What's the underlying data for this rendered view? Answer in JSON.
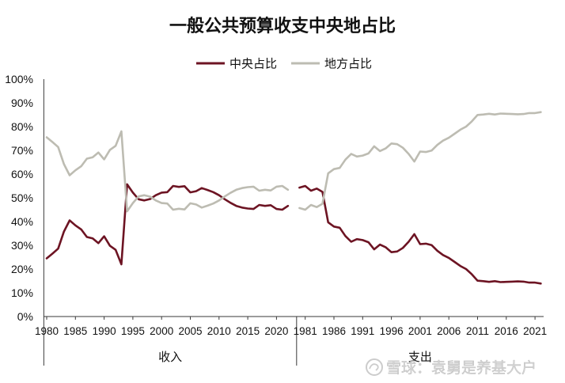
{
  "chart_data": {
    "type": "line",
    "title": "一般公共预算收支中央地占比",
    "legend_position": "top",
    "grid": false,
    "ylim": [
      0,
      100
    ],
    "y_ticks": [
      0,
      10,
      20,
      30,
      40,
      50,
      60,
      70,
      80,
      90,
      100
    ],
    "y_tick_labels": [
      "0%",
      "10%",
      "20%",
      "30%",
      "40%",
      "50%",
      "60%",
      "70%",
      "80%",
      "90%",
      "100%"
    ],
    "groups": [
      {
        "label": "收入",
        "x": [
          1980,
          1981,
          1982,
          1983,
          1984,
          1985,
          1986,
          1987,
          1988,
          1989,
          1990,
          1991,
          1992,
          1993,
          1994,
          1995,
          1996,
          1997,
          1998,
          1999,
          2000,
          2001,
          2002,
          2003,
          2004,
          2005,
          2006,
          2007,
          2008,
          2009,
          2010,
          2011,
          2012,
          2013,
          2014,
          2015,
          2016,
          2017,
          2018,
          2019,
          2020,
          2021,
          2022
        ],
        "x_tick_labels": [
          "1980",
          "1985",
          "1990",
          "1995",
          "2000",
          "2005",
          "2010",
          "2015",
          "2020"
        ]
      },
      {
        "label": "支出",
        "x": [
          1980,
          1981,
          1982,
          1983,
          1984,
          1985,
          1986,
          1987,
          1988,
          1989,
          1990,
          1991,
          1992,
          1993,
          1994,
          1995,
          1996,
          1997,
          1998,
          1999,
          2000,
          2001,
          2002,
          2003,
          2004,
          2005,
          2006,
          2007,
          2008,
          2009,
          2010,
          2011,
          2012,
          2013,
          2014,
          2015,
          2016,
          2017,
          2018,
          2019,
          2020,
          2021,
          2022
        ],
        "x_tick_labels": [
          "1981",
          "1986",
          "1991",
          "1996",
          "2001",
          "2006",
          "2011",
          "2016",
          "2021"
        ]
      }
    ],
    "series": [
      {
        "name": "中央占比",
        "color": "#6d1423",
        "values": [
          [
            24.5,
            26.5,
            28.6,
            35.8,
            40.5,
            38.4,
            36.7,
            33.5,
            32.9,
            30.9,
            33.8,
            29.8,
            28.1,
            22.0,
            55.7,
            52.2,
            49.4,
            48.9,
            49.5,
            51.1,
            52.2,
            52.4,
            55.0,
            54.6,
            54.9,
            52.3,
            52.8,
            54.1,
            53.3,
            52.4,
            51.1,
            49.4,
            47.9,
            46.6,
            45.9,
            45.5,
            45.3,
            47.0,
            46.6,
            46.9,
            45.3,
            45.0,
            46.6
          ],
          [
            54.3,
            55.0,
            53.0,
            53.9,
            52.5,
            39.7,
            37.9,
            37.4,
            33.9,
            31.5,
            32.6,
            32.2,
            31.3,
            28.3,
            30.3,
            29.2,
            27.1,
            27.4,
            28.9,
            31.5,
            34.7,
            30.5,
            30.7,
            30.1,
            27.7,
            25.9,
            24.7,
            23.0,
            21.3,
            20.0,
            17.8,
            15.1,
            14.9,
            14.6,
            14.9,
            14.5,
            14.6,
            14.7,
            14.8,
            14.7,
            14.3,
            14.3,
            13.9
          ]
        ]
      },
      {
        "name": "地方占比",
        "color": "#bdbcb2",
        "values": [
          [
            75.5,
            73.5,
            71.4,
            64.2,
            59.5,
            61.6,
            63.3,
            66.5,
            67.1,
            69.1,
            66.2,
            70.2,
            71.9,
            78.0,
            44.3,
            47.8,
            50.6,
            51.1,
            50.5,
            48.9,
            47.8,
            47.6,
            45.0,
            45.4,
            45.1,
            47.7,
            47.2,
            45.9,
            46.7,
            47.6,
            48.9,
            50.6,
            52.1,
            53.4,
            54.1,
            54.5,
            54.7,
            53.0,
            53.4,
            53.1,
            54.7,
            55.0,
            53.4
          ],
          [
            45.7,
            45.0,
            47.0,
            46.1,
            47.5,
            60.3,
            62.1,
            62.6,
            66.1,
            68.5,
            67.4,
            67.8,
            68.7,
            71.7,
            69.7,
            70.8,
            72.9,
            72.6,
            71.1,
            68.5,
            65.3,
            69.5,
            69.3,
            69.9,
            72.3,
            74.1,
            75.3,
            77.0,
            78.7,
            80.0,
            82.2,
            84.9,
            85.1,
            85.4,
            85.1,
            85.5,
            85.4,
            85.3,
            85.2,
            85.3,
            85.7,
            85.7,
            86.1
          ]
        ]
      }
    ]
  },
  "watermark": {
    "text": "雪球：袁舅是养基大户",
    "logo_icon": "snowball-logo-icon"
  }
}
